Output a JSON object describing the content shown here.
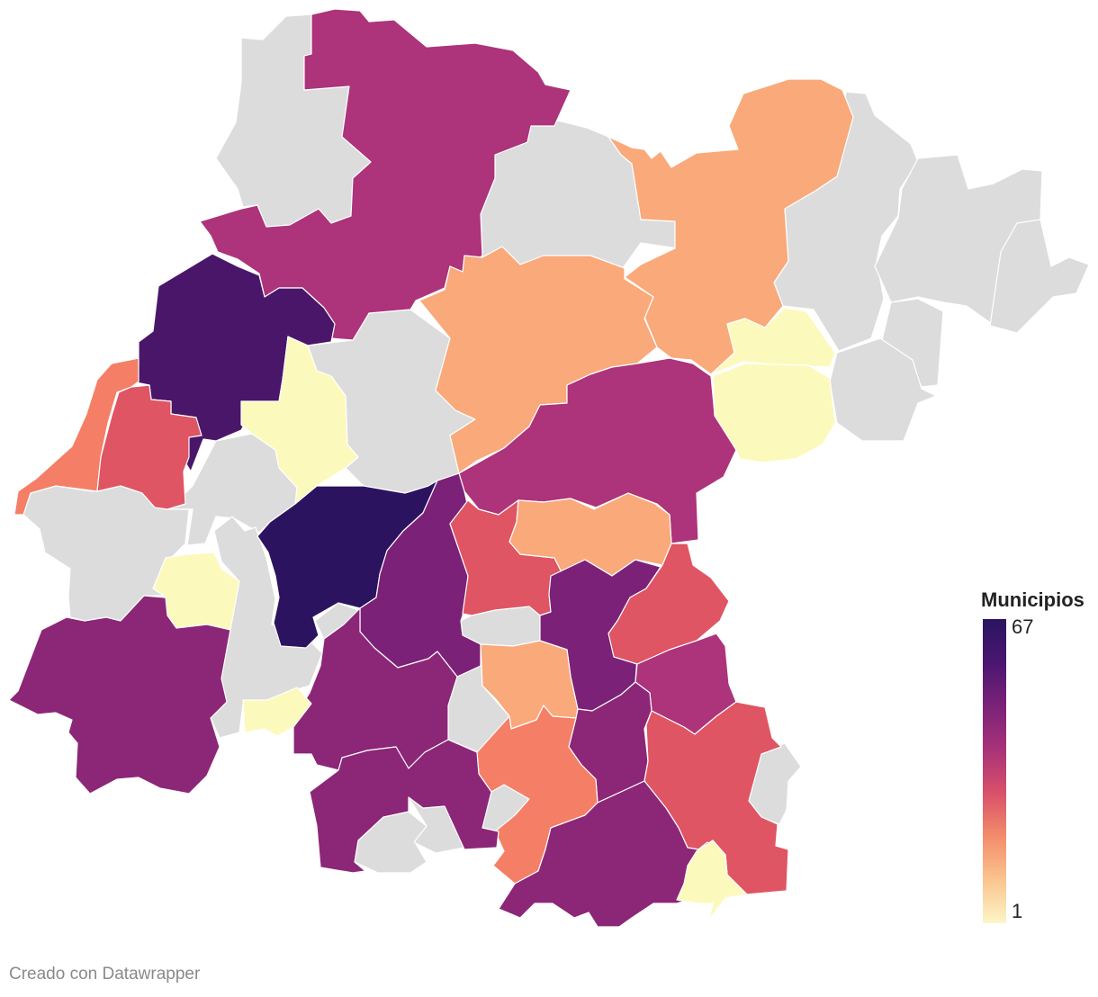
{
  "legend": {
    "title": "Municipios",
    "max_label": "67",
    "min_label": "1",
    "gradient": [
      "#2b1460",
      "#4a1670",
      "#7b2278",
      "#a83278",
      "#d9506a",
      "#f38c6b",
      "#fbc48e",
      "#fcf5c8"
    ]
  },
  "credit": "Creado con Datawrapper",
  "colors": {
    "no_data": "#dcdcdc",
    "v67": "#2c1360",
    "v60": "#4a1669",
    "v45": "#7b2178",
    "v40": "#8c2677",
    "v30": "#ad337a",
    "v15": "#df5563",
    "v10": "#f47f66",
    "v5": "#f9a97a",
    "v1": "#fcf9bd"
  }
}
